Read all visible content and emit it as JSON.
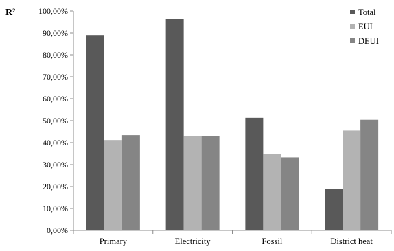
{
  "chart_data": {
    "type": "bar",
    "ylabel": "R²",
    "categories": [
      "Primary",
      "Electricity",
      "Fossil",
      "District heat"
    ],
    "series": [
      {
        "name": "Total",
        "values": [
          89.0,
          96.5,
          51.3,
          19.0
        ],
        "color": "#595959"
      },
      {
        "name": "EUI",
        "values": [
          41.2,
          43.0,
          35.0,
          45.5
        ],
        "color": "#b3b3b3"
      },
      {
        "name": "DEUI",
        "values": [
          43.4,
          43.0,
          33.3,
          50.4
        ],
        "color": "#858585"
      }
    ],
    "ylim": [
      0,
      100
    ],
    "ytick_values": [
      0,
      10,
      20,
      30,
      40,
      50,
      60,
      70,
      80,
      90,
      100
    ],
    "ytick_labels": [
      "0,00%",
      "10,00%",
      "20,00%",
      "30,00%",
      "40,00%",
      "50,00%",
      "60,00%",
      "70,00%",
      "80,00%",
      "90,00%",
      "100,00%"
    ],
    "grid": false,
    "legend_position": "top-right"
  }
}
